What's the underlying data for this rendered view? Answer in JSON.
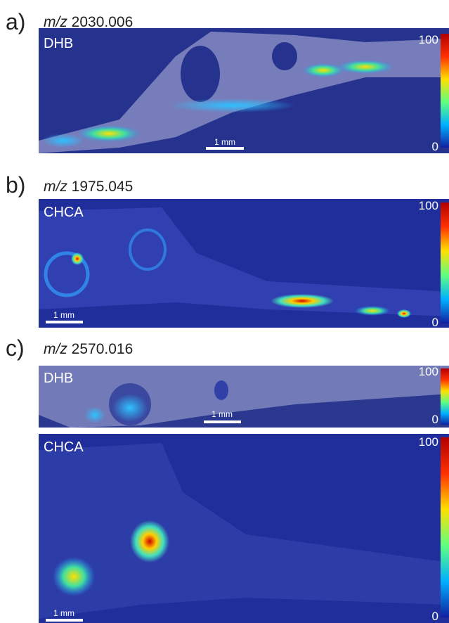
{
  "panels": [
    {
      "label": "a)",
      "mz_prefix": "m/z",
      "mz": "2030.006",
      "images": [
        {
          "matrix": "DHB",
          "scale_bar": "1 mm",
          "colorbar_max": 100,
          "colorbar_min": 0
        }
      ]
    },
    {
      "label": "b)",
      "mz_prefix": "m/z",
      "mz": "1975.045",
      "images": [
        {
          "matrix": "CHCA",
          "scale_bar": "1 mm",
          "colorbar_max": 100,
          "colorbar_min": 0
        }
      ]
    },
    {
      "label": "c)",
      "mz_prefix": "m/z",
      "mz": "2570.016",
      "images": [
        {
          "matrix": "DHB",
          "scale_bar": "1 mm",
          "colorbar_max": 100,
          "colorbar_min": 0
        },
        {
          "matrix": "CHCA",
          "scale_bar": "1 mm",
          "colorbar_max": 100,
          "colorbar_min": 0
        }
      ]
    }
  ]
}
